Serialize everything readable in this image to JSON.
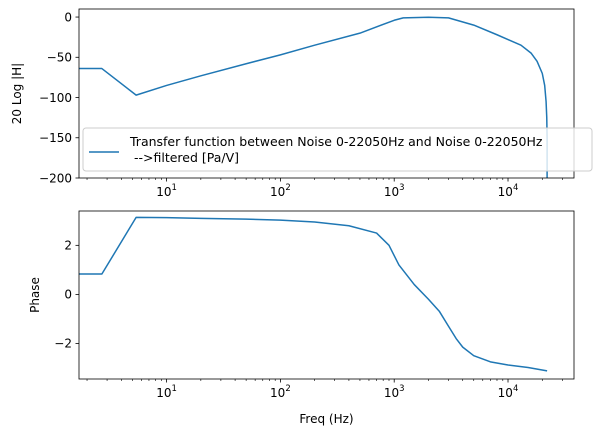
{
  "chart_data": [
    {
      "type": "line",
      "xscale": "log",
      "xlim": [
        1.7,
        38000
      ],
      "ylim": [
        -200,
        10
      ],
      "ylabel": "20 Log |H|",
      "xlabel": "",
      "x_ticks": [
        {
          "value": 10,
          "base": "10",
          "exp": "1"
        },
        {
          "value": 100,
          "base": "10",
          "exp": "2"
        },
        {
          "value": 1000,
          "base": "10",
          "exp": "3"
        },
        {
          "value": 10000,
          "base": "10",
          "exp": "4"
        }
      ],
      "y_ticks": [
        0,
        -50,
        -100,
        -150,
        -200
      ],
      "y_tick_labels": [
        "0",
        "−50",
        "−100",
        "−150",
        "−200"
      ],
      "legend": {
        "placement": "center-left",
        "line1": "Transfer function between Noise 0-22050Hz and Noise 0-22050Hz",
        "line2": " -->filtered [Pa/V]"
      },
      "series": [
        {
          "name": "Transfer function between Noise 0-22050Hz and Noise 0-22050Hz -->filtered [Pa/V]",
          "color": "#1f77b4",
          "x": [
            1.7,
            2.7,
            5.4,
            10,
            20,
            50,
            100,
            200,
            500,
            1000,
            1200,
            2000,
            3000,
            5000,
            8000,
            10000,
            13000,
            16000,
            18000,
            20000,
            21000,
            21600,
            21900,
            22050,
            22050
          ],
          "y": [
            -64,
            -64,
            -97,
            -85,
            -73,
            -58,
            -47,
            -35,
            -20,
            -4,
            -1,
            -0.3,
            -1,
            -10,
            -22,
            -28,
            -35,
            -45,
            -55,
            -70,
            -85,
            -105,
            -125,
            -150,
            -200
          ]
        }
      ]
    },
    {
      "type": "line",
      "xscale": "log",
      "xlim": [
        1.7,
        38000
      ],
      "ylim": [
        -3.45,
        3.4
      ],
      "ylabel": "Phase",
      "xlabel": "Freq (Hz)",
      "x_ticks": [
        {
          "value": 10,
          "base": "10",
          "exp": "1"
        },
        {
          "value": 100,
          "base": "10",
          "exp": "2"
        },
        {
          "value": 1000,
          "base": "10",
          "exp": "3"
        },
        {
          "value": 10000,
          "base": "10",
          "exp": "4"
        }
      ],
      "y_ticks": [
        2,
        0,
        -2
      ],
      "y_tick_labels": [
        "2",
        "0",
        "−2"
      ],
      "series": [
        {
          "color": "#1f77b4",
          "x": [
            1.7,
            2.7,
            5.4,
            10,
            20,
            50,
            100,
            200,
            400,
            700,
            900,
            1100,
            1500,
            2000,
            2500,
            3000,
            3500,
            4000,
            5000,
            7000,
            10000,
            15000,
            22050
          ],
          "y": [
            0.83,
            0.83,
            3.14,
            3.13,
            3.1,
            3.07,
            3.03,
            2.95,
            2.8,
            2.5,
            2.0,
            1.2,
            0.4,
            -0.2,
            -0.7,
            -1.3,
            -1.8,
            -2.15,
            -2.5,
            -2.75,
            -2.88,
            -2.98,
            -3.12
          ]
        }
      ]
    }
  ]
}
